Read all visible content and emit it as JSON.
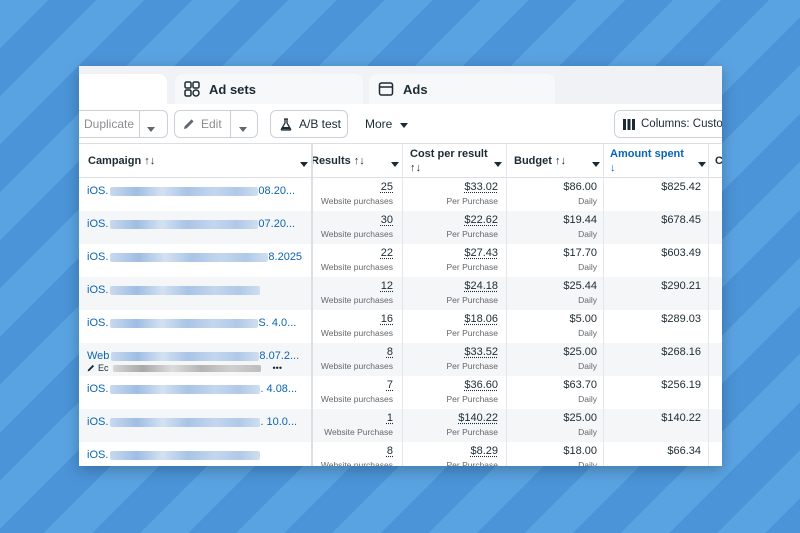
{
  "tabs": [
    {
      "label": ""
    },
    {
      "label": "Ad sets"
    },
    {
      "label": "Ads"
    }
  ],
  "toolbar": {
    "duplicate_label": "Duplicate",
    "edit_label": "Edit",
    "ab_test_label": "A/B test",
    "more_label": "More",
    "columns_label": "Columns: Custom"
  },
  "headers": {
    "campaign": "Campaign ↑↓",
    "results": "Results ↑↓",
    "cost_per_result": "Cost per result",
    "cost_per_result_sort": "↑↓",
    "budget": "Budget ↑↓",
    "amount_spent": "Amount spent",
    "amount_spent_sort": "↓",
    "next_col": "C"
  },
  "rows": [
    {
      "campaign_prefix": "iOS.",
      "campaign_suffix": "08.20...",
      "results": "25",
      "result_type": "Website purchases",
      "cost": "$33.02",
      "cost_sub": "Per Purchase",
      "budget": "$86.00",
      "budget_sub": "Daily",
      "spent": "$825.42"
    },
    {
      "campaign_prefix": "iOS.",
      "campaign_suffix": "07.20...",
      "results": "30",
      "result_type": "Website purchases",
      "cost": "$22.62",
      "cost_sub": "Per Purchase",
      "budget": "$19.44",
      "budget_sub": "Daily",
      "spent": "$678.45"
    },
    {
      "campaign_prefix": "iOS.",
      "campaign_suffix": "8.2025",
      "results": "22",
      "result_type": "Website purchases",
      "cost": "$27.43",
      "cost_sub": "Per Purchase",
      "budget": "$17.70",
      "budget_sub": "Daily",
      "spent": "$603.49"
    },
    {
      "campaign_prefix": "iOS.",
      "campaign_suffix": "",
      "results": "12",
      "result_type": "Website purchases",
      "cost": "$24.18",
      "cost_sub": "Per Purchase",
      "budget": "$25.44",
      "budget_sub": "Daily",
      "spent": "$290.21"
    },
    {
      "campaign_prefix": "iOS.",
      "campaign_suffix": "S. 4.0...",
      "results": "16",
      "result_type": "Website purchases",
      "cost": "$18.06",
      "cost_sub": "Per Purchase",
      "budget": "$5.00",
      "budget_sub": "Daily",
      "spent": "$289.03"
    },
    {
      "campaign_prefix": "Web",
      "campaign_suffix": "8.07.2...",
      "results": "8",
      "result_type": "Website purchases",
      "cost": "$33.52",
      "cost_sub": "Per Purchase",
      "budget": "$25.00",
      "budget_sub": "Daily",
      "spent": "$268.16",
      "row_tools": "Ec",
      "row_more": "•••"
    },
    {
      "campaign_prefix": "iOS.",
      "campaign_suffix": ". 4.08...",
      "results": "7",
      "result_type": "Website purchases",
      "cost": "$36.60",
      "cost_sub": "Per Purchase",
      "budget": "$63.70",
      "budget_sub": "Daily",
      "spent": "$256.19"
    },
    {
      "campaign_prefix": "iOS.",
      "campaign_suffix": ". 10.0...",
      "results": "1",
      "result_type": "Website Purchase",
      "cost": "$140.22",
      "cost_sub": "Per Purchase",
      "budget": "$25.00",
      "budget_sub": "Daily",
      "spent": "$140.22"
    },
    {
      "campaign_prefix": "iOS.",
      "campaign_suffix": "",
      "results": "8",
      "result_type": "Website purchases",
      "cost": "$8.29",
      "cost_sub": "Per Purchase",
      "budget": "$18.00",
      "budget_sub": "Daily",
      "spent": "$66.34"
    }
  ],
  "colors": {
    "link_blue": "#0a64b4",
    "sorted_header_blue": "#0a64b4",
    "background_stripe_light": "#5aa3e2",
    "background_stripe_dark": "#4b94d8"
  }
}
